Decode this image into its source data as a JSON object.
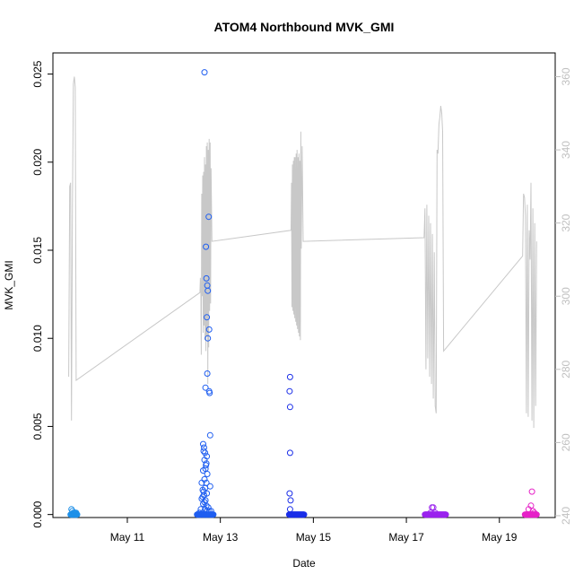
{
  "chart_data": {
    "type": "scatter",
    "title": "ATOM4 Northbound MVK_GMI",
    "xlabel": "Date",
    "ylabel": "MVK_GMI",
    "x_ticks": [
      {
        "label": "May 11",
        "day": 11
      },
      {
        "label": "May 13",
        "day": 13
      },
      {
        "label": "May 15",
        "day": 15
      },
      {
        "label": "May 17",
        "day": 17
      },
      {
        "label": "May 19",
        "day": 19
      }
    ],
    "xlim": [
      9.4,
      20.2
    ],
    "ylim": [
      -0.00017,
      0.0262
    ],
    "y_ticks": [
      0.0,
      0.005,
      0.01,
      0.015,
      0.02,
      0.025
    ],
    "y_tick_labels": [
      "0.000",
      "0.005",
      "0.010",
      "0.015",
      "0.020",
      "0.025"
    ],
    "y2lim": [
      239.5,
      366.5
    ],
    "y2_ticks": [
      240,
      260,
      280,
      300,
      320,
      340,
      360
    ],
    "y2_tick_labels": [
      "240",
      "260",
      "280",
      "300",
      "320",
      "340",
      "360"
    ],
    "colors": {
      "axis": "#000000",
      "secondary_axis": "#c0c0c0",
      "secondary_line": "#c8c8c8"
    },
    "scatter_groups": [
      {
        "color": "#1e90e8",
        "x_range": [
          9.78,
          9.92
        ],
        "points": [
          [
            9.8,
            0.0003
          ],
          [
            9.82,
            0.0002
          ],
          [
            9.84,
            0.0001
          ],
          [
            9.86,
            0.0001
          ],
          [
            9.88,
            0.0001
          ],
          [
            9.9,
            0.0001
          ]
        ]
      },
      {
        "color": "#1f5ef0",
        "x_range": [
          12.5,
          12.85
        ],
        "points": [
          [
            12.66,
            0.0251
          ],
          [
            12.75,
            0.0169
          ],
          [
            12.69,
            0.0152
          ],
          [
            12.7,
            0.0134
          ],
          [
            12.72,
            0.013
          ],
          [
            12.73,
            0.0127
          ],
          [
            12.71,
            0.0112
          ],
          [
            12.76,
            0.0105
          ],
          [
            12.73,
            0.01
          ],
          [
            12.72,
            0.008
          ],
          [
            12.68,
            0.0072
          ],
          [
            12.76,
            0.007
          ],
          [
            12.77,
            0.0069
          ],
          [
            12.78,
            0.0045
          ],
          [
            12.63,
            0.004
          ],
          [
            12.65,
            0.0038
          ],
          [
            12.64,
            0.0036
          ],
          [
            12.67,
            0.0035
          ],
          [
            12.71,
            0.0033
          ],
          [
            12.66,
            0.0031
          ],
          [
            12.7,
            0.0029
          ],
          [
            12.69,
            0.0028
          ],
          [
            12.68,
            0.0026
          ],
          [
            12.63,
            0.0025
          ],
          [
            12.72,
            0.0023
          ],
          [
            12.66,
            0.002
          ],
          [
            12.6,
            0.0018
          ],
          [
            12.7,
            0.0018
          ],
          [
            12.78,
            0.0016
          ],
          [
            12.67,
            0.0015
          ],
          [
            12.62,
            0.0014
          ],
          [
            12.64,
            0.0013
          ],
          [
            12.71,
            0.0012
          ],
          [
            12.65,
            0.0011
          ],
          [
            12.62,
            0.001
          ],
          [
            12.6,
            0.0009
          ],
          [
            12.68,
            0.0008
          ],
          [
            12.66,
            0.0007
          ],
          [
            12.63,
            0.0006
          ],
          [
            12.7,
            0.0005
          ],
          [
            12.74,
            0.0004
          ],
          [
            12.58,
            0.0003
          ],
          [
            12.67,
            0.0003
          ],
          [
            12.72,
            0.0002
          ],
          [
            12.76,
            0.0002
          ],
          [
            12.8,
            0.0002
          ],
          [
            12.55,
            0.0001
          ],
          [
            12.62,
            0.0001
          ]
        ]
      },
      {
        "color": "#1a2ee8",
        "x_range": [
          14.48,
          14.8
        ],
        "points": [
          [
            14.5,
            0.0078
          ],
          [
            14.49,
            0.007
          ],
          [
            14.5,
            0.0061
          ],
          [
            14.5,
            0.0035
          ],
          [
            14.49,
            0.0012
          ],
          [
            14.51,
            0.0008
          ],
          [
            14.5,
            0.0003
          ]
        ]
      },
      {
        "color": "#9a22ee",
        "x_range": [
          17.4,
          17.85
        ],
        "points": [
          [
            17.55,
            0.0004
          ],
          [
            17.58,
            0.0004
          ],
          [
            17.52,
            0.0001
          ],
          [
            17.62,
            0.0001
          ]
        ]
      },
      {
        "color": "#e622c8",
        "x_range": [
          19.55,
          19.8
        ],
        "points": [
          [
            19.7,
            0.0013
          ],
          [
            19.68,
            0.0005
          ],
          [
            19.63,
            0.0003
          ],
          [
            19.72,
            0.0002
          ],
          [
            19.75,
            0.0001
          ]
        ]
      }
    ],
    "secondary_line": [
      [
        9.74,
        278
      ],
      [
        9.76,
        330
      ],
      [
        9.78,
        331
      ],
      [
        9.8,
        266
      ],
      [
        9.82,
        325
      ],
      [
        9.84,
        358
      ],
      [
        9.86,
        360
      ],
      [
        9.88,
        357
      ],
      [
        9.9,
        277
      ],
      [
        12.56,
        301
      ],
      [
        12.57,
        305
      ],
      [
        12.58,
        302
      ],
      [
        12.59,
        284
      ],
      [
        12.6,
        328
      ],
      [
        12.61,
        300
      ],
      [
        12.62,
        333
      ],
      [
        12.63,
        290
      ],
      [
        12.64,
        334
      ],
      [
        12.65,
        292
      ],
      [
        12.66,
        338
      ],
      [
        12.67,
        288
      ],
      [
        12.68,
        336
      ],
      [
        12.69,
        285
      ],
      [
        12.7,
        341
      ],
      [
        12.71,
        289
      ],
      [
        12.72,
        342
      ],
      [
        12.73,
        276
      ],
      [
        12.74,
        340
      ],
      [
        12.75,
        286
      ],
      [
        12.76,
        343
      ],
      [
        12.77,
        296
      ],
      [
        12.78,
        342
      ],
      [
        12.79,
        298
      ],
      [
        12.8,
        335
      ],
      [
        12.82,
        315
      ],
      [
        14.52,
        318
      ],
      [
        14.53,
        331
      ],
      [
        14.54,
        297
      ],
      [
        14.55,
        336
      ],
      [
        14.56,
        296
      ],
      [
        14.57,
        337
      ],
      [
        14.58,
        295
      ],
      [
        14.59,
        338
      ],
      [
        14.6,
        294
      ],
      [
        14.61,
        338
      ],
      [
        14.62,
        293
      ],
      [
        14.63,
        339
      ],
      [
        14.64,
        292
      ],
      [
        14.65,
        340
      ],
      [
        14.66,
        291
      ],
      [
        14.67,
        338
      ],
      [
        14.68,
        290
      ],
      [
        14.69,
        339
      ],
      [
        14.7,
        289
      ],
      [
        14.71,
        337
      ],
      [
        14.72,
        288
      ],
      [
        14.73,
        345
      ],
      [
        14.74,
        313
      ],
      [
        14.76,
        341
      ],
      [
        14.78,
        315
      ],
      [
        17.38,
        316
      ],
      [
        17.4,
        324
      ],
      [
        17.42,
        280
      ],
      [
        17.44,
        325
      ],
      [
        17.46,
        283
      ],
      [
        17.48,
        322
      ],
      [
        17.5,
        278
      ],
      [
        17.52,
        320
      ],
      [
        17.54,
        276
      ],
      [
        17.56,
        317
      ],
      [
        17.58,
        272
      ],
      [
        17.6,
        312
      ],
      [
        17.62,
        270
      ],
      [
        17.64,
        268
      ],
      [
        17.66,
        340
      ],
      [
        17.68,
        339
      ],
      [
        17.7,
        347
      ],
      [
        17.72,
        349
      ],
      [
        17.74,
        352
      ],
      [
        17.76,
        350
      ],
      [
        17.78,
        345
      ],
      [
        17.8,
        285
      ],
      [
        19.5,
        311
      ],
      [
        19.52,
        328
      ],
      [
        19.54,
        327
      ],
      [
        19.56,
        322
      ],
      [
        19.58,
        268
      ],
      [
        19.6,
        325
      ],
      [
        19.62,
        267
      ],
      [
        19.64,
        318
      ],
      [
        19.66,
        310
      ],
      [
        19.68,
        331
      ],
      [
        19.7,
        266
      ],
      [
        19.72,
        324
      ],
      [
        19.74,
        264
      ],
      [
        19.76,
        320
      ],
      [
        19.78,
        270
      ],
      [
        19.8,
        315
      ]
    ]
  }
}
